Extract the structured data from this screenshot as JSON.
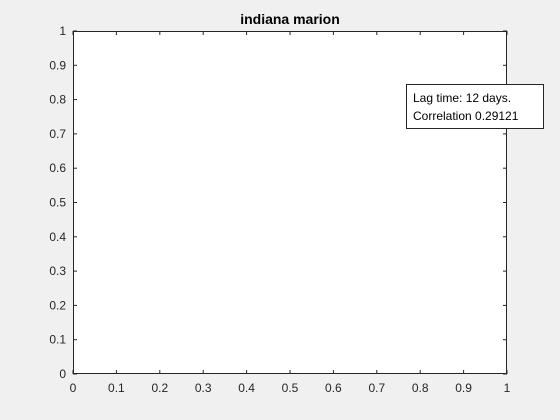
{
  "chart_data": {
    "type": "line",
    "title": "indiana marion",
    "xlabel": "",
    "ylabel": "",
    "xlim": [
      0,
      1
    ],
    "ylim": [
      0,
      1
    ],
    "x_ticks": [
      "0",
      "0.1",
      "0.2",
      "0.3",
      "0.4",
      "0.5",
      "0.6",
      "0.7",
      "0.8",
      "0.9",
      "1"
    ],
    "y_ticks": [
      "0",
      "0.1",
      "0.2",
      "0.3",
      "0.4",
      "0.5",
      "0.6",
      "0.7",
      "0.8",
      "0.9",
      "1"
    ],
    "series": [],
    "grid": false,
    "annotation": {
      "lines": [
        "Lag time: 12 days.",
        "Correlation 0.29121"
      ]
    }
  },
  "colors": {
    "figure_background": "#f0f0f0",
    "axes_background": "#ffffff",
    "axis_color": "#262626"
  }
}
